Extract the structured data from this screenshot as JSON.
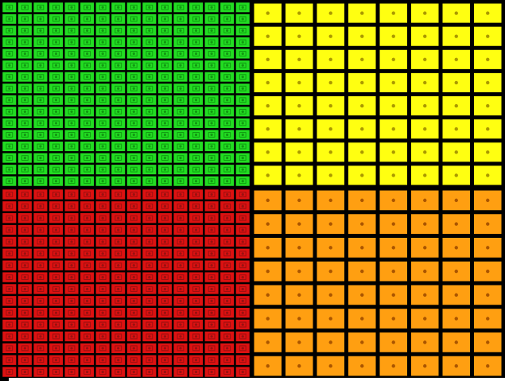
{
  "quadrants": [
    {
      "color": "#22dd22",
      "dot": "#119911",
      "columns": 16,
      "rows": 16
    },
    {
      "color": "#ffff11",
      "dot": "#aa9900",
      "columns": 8,
      "rows": 8
    },
    {
      "color": "#dd1111",
      "dot": "#991111",
      "columns": 16,
      "rows": 16
    },
    {
      "color": "#ff9f11",
      "dot": "#aa5500",
      "columns": 8,
      "rows": 8
    }
  ]
}
